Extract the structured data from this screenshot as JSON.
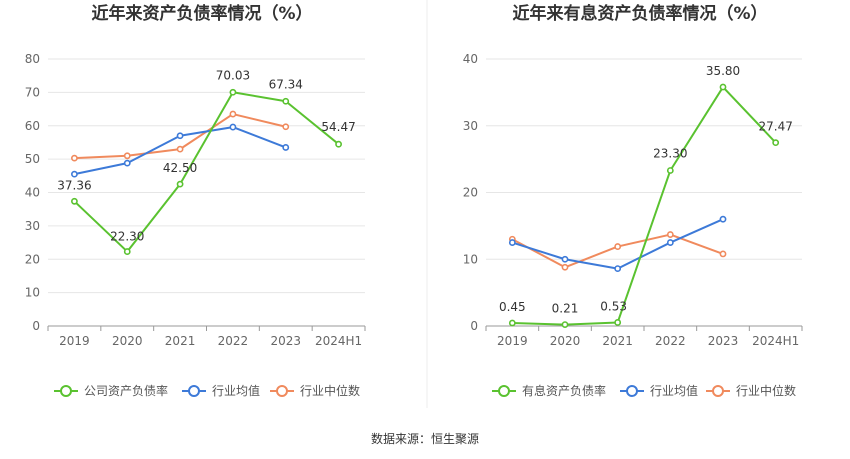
{
  "source_note": "数据来源：恒生聚源",
  "chart_data": [
    {
      "type": "line",
      "title": "近年来资产负债率情况（%）",
      "categories": [
        "2019",
        "2020",
        "2021",
        "2022",
        "2023",
        "2024H1"
      ],
      "ylim": [
        0,
        80
      ],
      "yticks": [
        0,
        10,
        20,
        30,
        40,
        50,
        60,
        70,
        80
      ],
      "grid": true,
      "legend_position": "bottom",
      "series": [
        {
          "name": "公司资产负债率",
          "color": "#5ac230",
          "values": [
            37.36,
            22.3,
            42.5,
            70.03,
            67.34,
            54.47
          ],
          "labels": [
            "37.36",
            "22.30",
            "42.50",
            "70.03",
            "67.34",
            "54.47"
          ]
        },
        {
          "name": "行业均值",
          "color": "#3d7ad8",
          "values": [
            45.5,
            48.8,
            57.0,
            59.6,
            53.5,
            null
          ]
        },
        {
          "name": "行业中位数",
          "color": "#f08a5d",
          "values": [
            50.3,
            51.0,
            53.0,
            63.5,
            59.7,
            null
          ]
        }
      ]
    },
    {
      "type": "line",
      "title": "近年来有息资产负债率情况（%）",
      "categories": [
        "2019",
        "2020",
        "2021",
        "2022",
        "2023",
        "2024H1"
      ],
      "ylim": [
        0,
        40
      ],
      "yticks": [
        0,
        10,
        20,
        30,
        40
      ],
      "grid": true,
      "legend_position": "bottom",
      "series": [
        {
          "name": "有息资产负债率",
          "color": "#5ac230",
          "values": [
            0.45,
            0.21,
            0.53,
            23.3,
            35.8,
            27.47
          ],
          "labels": [
            "0.45",
            "0.21",
            "0.53",
            "23.30",
            "35.80",
            "27.47"
          ]
        },
        {
          "name": "行业均值",
          "color": "#3d7ad8",
          "values": [
            12.5,
            10.0,
            8.6,
            12.5,
            16.0,
            null
          ]
        },
        {
          "name": "行业中位数",
          "color": "#f08a5d",
          "values": [
            13.0,
            8.8,
            11.9,
            13.7,
            10.8,
            null
          ]
        }
      ]
    }
  ]
}
